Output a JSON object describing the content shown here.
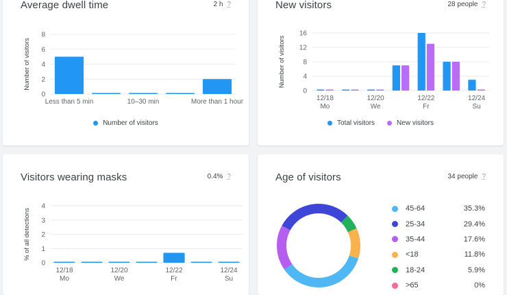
{
  "cards": {
    "dwell": {
      "title": "Average dwell time",
      "meta": "2 h",
      "help": "?",
      "ylabel": "Number of visitors",
      "legend": "Number of visitors",
      "color": "#2196f3"
    },
    "new_visitors": {
      "title": "New visitors",
      "meta": "28 people",
      "help": "?",
      "ylabel": "Number of visitors",
      "legend_total": "Total visitors",
      "legend_new": "New visitors",
      "color_total": "#2196f3",
      "color_new": "#b96cf5"
    },
    "masks": {
      "title": "Visitors wearing masks",
      "meta": "0.4%",
      "help": "?",
      "ylabel": "% of all detections",
      "color": "#2196f3"
    },
    "age": {
      "title": "Age of visitors",
      "meta": "34 people",
      "help": "?",
      "rows": [
        {
          "label": "45-64",
          "value": "35.3%",
          "color": "#4fb7f3"
        },
        {
          "label": "25-34",
          "value": "29.4%",
          "color": "#3d46d6"
        },
        {
          "label": "35-44",
          "value": "17.6%",
          "color": "#b55ef0"
        },
        {
          "label": "<18",
          "value": "11.8%",
          "color": "#f9b24d"
        },
        {
          "label": "18-24",
          "value": "5.9%",
          "color": "#20b15a"
        },
        {
          "label": ">65",
          "value": "0%",
          "color": "#f26b8e"
        }
      ]
    }
  },
  "chart_data": [
    {
      "id": "dwell",
      "type": "bar",
      "title": "Average dwell time",
      "ylabel": "Number of visitors",
      "categories": [
        "Less than 5 min",
        "",
        "10–30 min",
        "",
        "More than 1 hour"
      ],
      "series": [
        {
          "name": "Number of visitors",
          "values": [
            5,
            0,
            0,
            0,
            2
          ]
        }
      ],
      "ylim": [
        0,
        8
      ],
      "yticks": [
        "0",
        "2",
        "4",
        "6",
        "8"
      ],
      "grid": true,
      "legend": "bottom"
    },
    {
      "id": "new_visitors",
      "type": "bar",
      "title": "New visitors",
      "ylabel": "Number of visitors",
      "categories": [
        "12/18",
        "12/19",
        "12/20",
        "12/21",
        "12/22",
        "12/23",
        "12/24"
      ],
      "x_tick_labels": [
        {
          "date": "12/18",
          "day": "Mo"
        },
        {
          "date": "12/20",
          "day": "We"
        },
        {
          "date": "12/22",
          "day": "Fr"
        },
        {
          "date": "12/24",
          "day": "Su"
        }
      ],
      "series": [
        {
          "name": "Total visitors",
          "values": [
            0,
            0,
            0,
            7,
            16,
            8,
            3
          ]
        },
        {
          "name": "New visitors",
          "values": [
            0,
            0,
            0,
            7,
            13,
            8,
            0
          ]
        }
      ],
      "ylim": [
        0,
        16
      ],
      "yticks": [
        "0",
        "4",
        "8",
        "12",
        "16"
      ],
      "grid": true,
      "legend": "bottom"
    },
    {
      "id": "masks",
      "type": "bar",
      "title": "Visitors wearing masks",
      "ylabel": "% of all detections",
      "categories": [
        "12/18",
        "12/19",
        "12/20",
        "12/21",
        "12/22",
        "12/23",
        "12/24"
      ],
      "x_tick_labels": [
        {
          "date": "12/18",
          "day": "Mo"
        },
        {
          "date": "12/20",
          "day": "We"
        },
        {
          "date": "12/22",
          "day": "Fr"
        },
        {
          "date": "12/24",
          "day": "Su"
        }
      ],
      "series": [
        {
          "values": [
            0,
            0,
            0,
            0,
            0.7,
            0,
            0
          ]
        }
      ],
      "ylim": [
        0,
        4
      ],
      "yticks": [
        "0",
        "1",
        "2",
        "3",
        "4"
      ],
      "grid": true
    },
    {
      "id": "age",
      "type": "pie",
      "title": "Age of visitors",
      "categories": [
        "45-64",
        "25-34",
        "35-44",
        "<18",
        "18-24",
        ">65"
      ],
      "values": [
        35.3,
        29.4,
        17.6,
        11.8,
        5.9,
        0
      ]
    }
  ]
}
